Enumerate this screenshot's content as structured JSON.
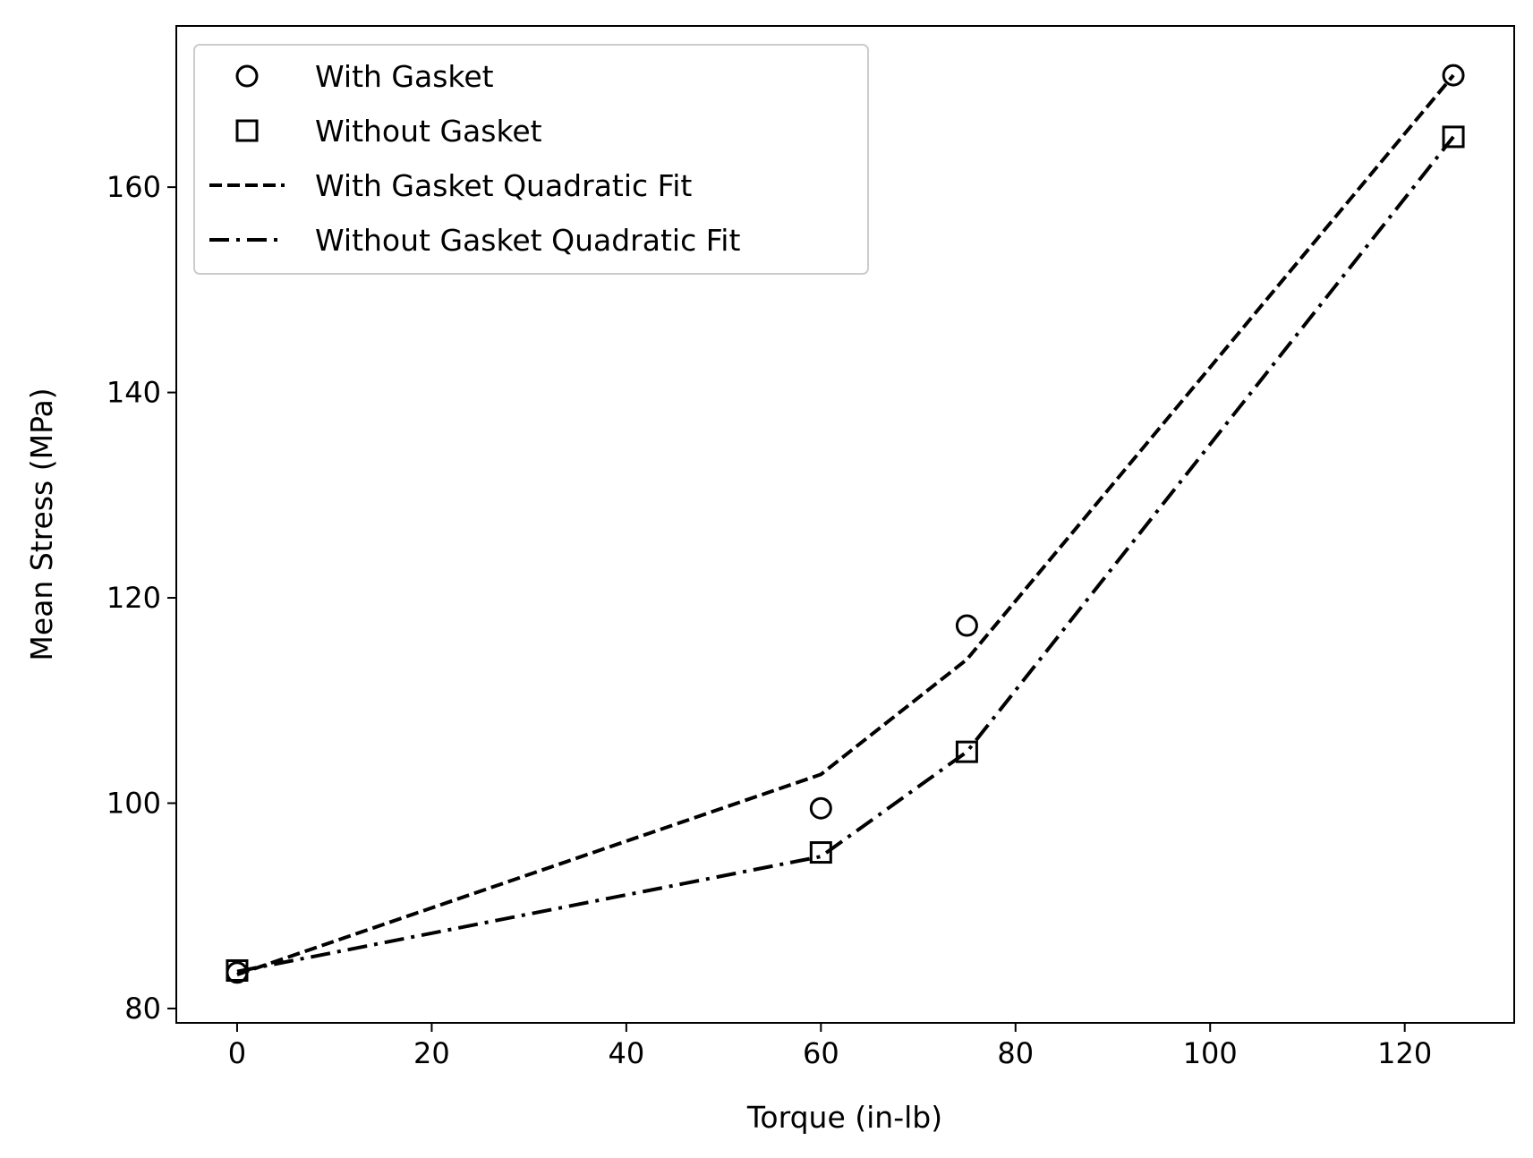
{
  "chart_data": {
    "type": "line",
    "title": "",
    "xlabel": "Torque (in-lb)",
    "ylabel": "Mean Stress (MPa)",
    "xlim": [
      -6.25,
      131.25
    ],
    "ylim": [
      78.6,
      175.7
    ],
    "xticks": [
      0,
      20,
      40,
      60,
      80,
      100,
      120
    ],
    "yticks": [
      80,
      100,
      120,
      140,
      160
    ],
    "grid": false,
    "legend_position": "upper-left",
    "series": [
      {
        "name": "With Gasket",
        "kind": "markers",
        "marker": "circle",
        "x": [
          0,
          60,
          75,
          125
        ],
        "y": [
          83.5,
          99.5,
          117.3,
          170.9
        ]
      },
      {
        "name": "Without Gasket",
        "kind": "markers",
        "marker": "square",
        "x": [
          0,
          60,
          75,
          125
        ],
        "y": [
          83.7,
          95.2,
          105.0,
          164.9
        ]
      },
      {
        "name": "With Gasket Quadratic Fit",
        "kind": "line",
        "dash": "dashed",
        "x": [
          0,
          60,
          75,
          125
        ],
        "y": [
          83.3,
          102.8,
          114.0,
          170.9
        ]
      },
      {
        "name": "Without Gasket Quadratic Fit",
        "kind": "line",
        "dash": "dashdot",
        "x": [
          0,
          60,
          75,
          125
        ],
        "y": [
          83.6,
          94.8,
          105.0,
          164.9
        ]
      }
    ]
  }
}
